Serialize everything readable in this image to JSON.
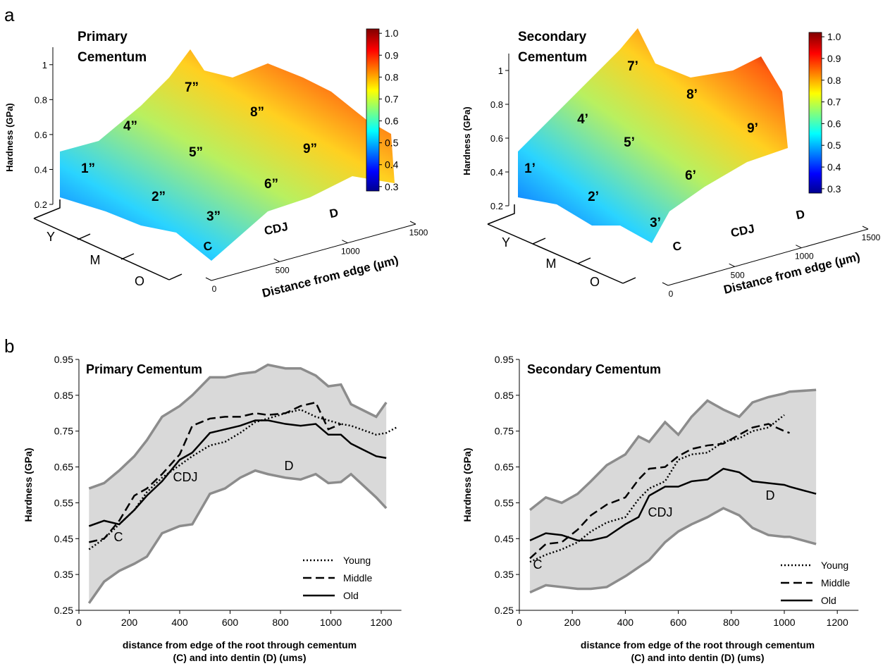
{
  "panel_labels": [
    "a",
    "b"
  ],
  "chart_data": [
    {
      "type": "surface",
      "title": [
        "Primary",
        "Cementum"
      ],
      "zlabel": "Hardness (GPa)",
      "zlim": [
        0.2,
        1.1
      ],
      "zticks": [
        0.2,
        0.4,
        0.6,
        0.8,
        1
      ],
      "colorbar": {
        "lim": [
          0.28,
          1.02
        ],
        "ticks": [
          {
            "value": 1,
            "label": "1.0"
          },
          0.9,
          0.8,
          0.7,
          0.6,
          0.5,
          0.4,
          0.3
        ]
      },
      "xlabel": "Distance from edge (µm)",
      "xlim": [
        0,
        1500
      ],
      "xticks": [
        0,
        500,
        1000,
        1500
      ],
      "y_categories": [
        "Y",
        "M",
        "O"
      ],
      "region_labels": [
        "1”",
        "2”",
        "3”",
        "4”",
        "5”",
        "6”",
        "7”",
        "8”",
        "9”"
      ],
      "zone_labels": [
        "C",
        "CDJ",
        "D"
      ]
    },
    {
      "type": "surface",
      "title": [
        "Secondary",
        "Cementum"
      ],
      "zlabel": "Hardness (GPa)",
      "zlim": [
        0.2,
        1.1
      ],
      "zticks": [
        0.2,
        0.4,
        0.6,
        0.8,
        1
      ],
      "colorbar": {
        "lim": [
          0.28,
          1.02
        ],
        "ticks": [
          {
            "value": 1,
            "label": "1.0"
          },
          0.9,
          0.8,
          0.7,
          0.6,
          0.5,
          0.4,
          0.3
        ]
      },
      "xlabel": "Distance from edge (µm)",
      "xlim": [
        0,
        1500
      ],
      "xticks": [
        0,
        500,
        1000,
        1500
      ],
      "y_categories": [
        "Y",
        "M",
        "O"
      ],
      "region_labels": [
        "1’",
        "2’",
        "3’",
        "4’",
        "5’",
        "6’",
        "7’",
        "8’",
        "9’"
      ],
      "zone_labels": [
        "C",
        "CDJ",
        "D"
      ]
    },
    {
      "type": "line",
      "title": "Primary Cementum",
      "ylabel": "Hardness (GPa)",
      "xlabel": [
        "distance from edge of the root through cementum",
        "(C) and into dentin (D) (ums)"
      ],
      "xlim": [
        0,
        1280
      ],
      "xticks": [
        0,
        200,
        400,
        600,
        800,
        1000,
        1200
      ],
      "ylim": [
        0.25,
        0.95
      ],
      "yticks": [
        0.25,
        0.35,
        0.45,
        0.55,
        0.65,
        0.75,
        0.85,
        0.95
      ],
      "annotations": [
        "C",
        "CDJ",
        "D"
      ],
      "x": [
        40,
        100,
        160,
        220,
        270,
        330,
        400,
        450,
        520,
        580,
        640,
        700,
        750,
        820,
        880,
        940,
        990,
        1040,
        1080,
        1180,
        1220,
        1260
      ],
      "band": {
        "color": "#d9d9d9",
        "edge_color": "#8c8c8c",
        "upper": [
          0.59,
          0.605,
          0.64,
          0.68,
          0.725,
          0.79,
          0.82,
          0.85,
          0.9,
          0.9,
          0.91,
          0.915,
          0.935,
          0.925,
          0.925,
          0.905,
          0.875,
          0.88,
          0.825,
          0.79,
          0.83,
          null
        ],
        "lower": [
          0.27,
          0.33,
          0.36,
          0.38,
          0.4,
          0.465,
          0.485,
          0.49,
          0.575,
          0.59,
          0.62,
          0.64,
          0.63,
          0.62,
          0.615,
          0.63,
          0.605,
          0.608,
          0.63,
          0.565,
          0.535,
          null
        ]
      },
      "series": [
        {
          "name": "Young",
          "color": "#000000",
          "dash": "dotted",
          "values": [
            0.42,
            0.45,
            0.49,
            0.53,
            0.58,
            0.62,
            0.655,
            0.68,
            0.71,
            0.72,
            0.745,
            0.775,
            0.785,
            0.8,
            0.81,
            0.79,
            0.78,
            0.77,
            0.765,
            0.74,
            0.745,
            0.76
          ]
        },
        {
          "name": "Middle",
          "color": "#000000",
          "dash": "dashed",
          "values": [
            0.44,
            0.45,
            0.5,
            0.57,
            0.59,
            0.63,
            0.685,
            0.765,
            0.785,
            0.79,
            0.79,
            0.8,
            0.795,
            0.8,
            0.82,
            0.83,
            0.755,
            0.77,
            null,
            null,
            null,
            null
          ]
        },
        {
          "name": "Old",
          "color": "#000000",
          "dash": "solid",
          "values": [
            0.485,
            0.5,
            0.49,
            0.53,
            0.57,
            0.61,
            0.67,
            0.69,
            0.745,
            0.755,
            0.765,
            0.78,
            0.78,
            0.77,
            0.765,
            0.77,
            0.74,
            0.74,
            0.715,
            0.68,
            0.675,
            null
          ]
        }
      ]
    },
    {
      "type": "line",
      "title": "Secondary Cementum",
      "ylabel": "Hardness (GPa)",
      "xlabel": [
        "distance from edge of the root through cementum",
        "(C) and into dentin (D) (ums)"
      ],
      "xlim": [
        0,
        1280
      ],
      "xticks": [
        0,
        200,
        400,
        600,
        800,
        1000,
        1200
      ],
      "ylim": [
        0.25,
        0.95
      ],
      "yticks": [
        0.25,
        0.35,
        0.45,
        0.55,
        0.65,
        0.75,
        0.85,
        0.95
      ],
      "annotations": [
        "C",
        "CDJ",
        "D"
      ],
      "x": [
        40,
        100,
        160,
        220,
        270,
        330,
        400,
        450,
        490,
        550,
        600,
        650,
        710,
        770,
        830,
        880,
        940,
        1000,
        1020,
        1120
      ],
      "band": {
        "color": "#d9d9d9",
        "edge_color": "#8c8c8c",
        "upper": [
          0.53,
          0.565,
          0.55,
          0.575,
          0.61,
          0.655,
          0.685,
          0.735,
          0.72,
          0.775,
          0.74,
          0.79,
          0.835,
          0.81,
          0.79,
          0.83,
          0.845,
          0.855,
          0.86,
          0.865
        ],
        "lower": [
          0.3,
          0.32,
          0.315,
          0.31,
          0.31,
          0.315,
          0.345,
          0.37,
          0.39,
          0.44,
          0.47,
          0.49,
          0.51,
          0.535,
          0.515,
          0.48,
          0.46,
          0.455,
          0.455,
          0.435
        ]
      },
      "series": [
        {
          "name": "Young",
          "color": "#000000",
          "dash": "dotted",
          "values": [
            0.385,
            0.405,
            0.42,
            0.44,
            0.47,
            0.495,
            0.51,
            0.56,
            0.59,
            0.61,
            0.67,
            0.685,
            0.69,
            0.72,
            0.73,
            0.75,
            0.76,
            0.795,
            null,
            null
          ]
        },
        {
          "name": "Middle",
          "color": "#000000",
          "dash": "dashed",
          "values": [
            0.395,
            0.435,
            0.44,
            0.475,
            0.515,
            0.545,
            0.565,
            0.615,
            0.645,
            0.65,
            0.68,
            0.7,
            0.71,
            0.715,
            0.74,
            0.76,
            0.77,
            0.75,
            0.745,
            null
          ]
        },
        {
          "name": "Old",
          "color": "#000000",
          "dash": "solid",
          "values": [
            0.445,
            0.465,
            0.46,
            0.445,
            0.445,
            0.455,
            0.49,
            0.51,
            0.57,
            0.595,
            0.595,
            0.61,
            0.615,
            0.645,
            0.635,
            0.61,
            0.605,
            0.6,
            0.595,
            0.575
          ]
        }
      ]
    }
  ]
}
